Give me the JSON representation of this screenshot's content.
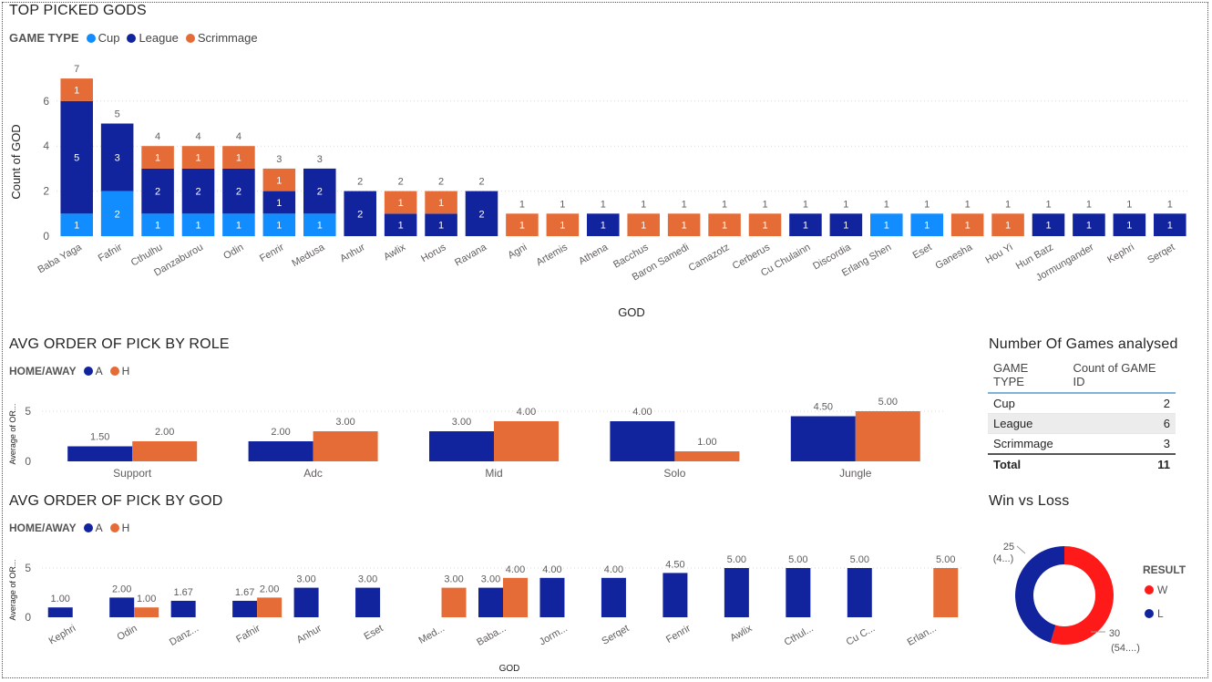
{
  "top_chart": {
    "title": "TOP PICKED GODS",
    "legend_title": "GAME TYPE",
    "legend": [
      {
        "label": "Cup",
        "color": "#118DFF"
      },
      {
        "label": "League",
        "color": "#12239E"
      },
      {
        "label": "Scrimmage",
        "color": "#E66C37"
      }
    ]
  },
  "role_chart": {
    "title": "AVG ORDER OF PICK BY ROLE",
    "legend_title": "HOME/AWAY",
    "legend": [
      {
        "label": "A",
        "color": "#12239E"
      },
      {
        "label": "H",
        "color": "#E66C37"
      }
    ]
  },
  "god_chart": {
    "title": "AVG ORDER OF PICK BY GOD",
    "legend_title": "HOME/AWAY",
    "legend": [
      {
        "label": "A",
        "color": "#12239E"
      },
      {
        "label": "H",
        "color": "#E66C37"
      }
    ]
  },
  "games_table": {
    "title": "Number Of Games analysed",
    "headers": [
      "GAME TYPE",
      "Count of GAME ID"
    ],
    "rows": [
      {
        "type": "Cup",
        "count": "2"
      },
      {
        "type": "League",
        "count": "6"
      },
      {
        "type": "Scrimmage",
        "count": "3"
      }
    ],
    "total_label": "Total",
    "total_value": "11"
  },
  "winloss": {
    "title": "Win vs Loss",
    "legend_title": "RESULT",
    "legend": [
      {
        "label": "W",
        "color": "#FF1A1A"
      },
      {
        "label": "L",
        "color": "#12239E"
      }
    ],
    "label_l_count": "25",
    "label_l_pct": "(4...)",
    "label_w_count": "30",
    "label_w_pct": "(54....)"
  },
  "chart_data": [
    {
      "type": "bar",
      "stacked": true,
      "title": "TOP PICKED GODS",
      "xlabel": "GOD",
      "ylabel": "Count of GOD",
      "ylim": [
        0,
        7
      ],
      "yticks": [
        0,
        2,
        4,
        6
      ],
      "categories": [
        "Baba Yaga",
        "Fafnir",
        "Cthulhu",
        "Danzaburou",
        "Odin",
        "Fenrir",
        "Medusa",
        "Anhur",
        "Awlix",
        "Horus",
        "Ravana",
        "Agni",
        "Artemis",
        "Athena",
        "Bacchus",
        "Baron Samedi",
        "Camazotz",
        "Cerberus",
        "Cu Chulainn",
        "Discordia",
        "Erlang Shen",
        "Eset",
        "Ganesha",
        "Hou Yi",
        "Hun Batz",
        "Jormungander",
        "Kephri",
        "Serqet"
      ],
      "series": [
        {
          "name": "Cup",
          "color": "#118DFF",
          "values": [
            1,
            2,
            1,
            1,
            1,
            1,
            1,
            0,
            0,
            0,
            0,
            0,
            0,
            0,
            0,
            0,
            0,
            0,
            0,
            0,
            1,
            1,
            0,
            0,
            0,
            0,
            0,
            0
          ]
        },
        {
          "name": "League",
          "color": "#12239E",
          "values": [
            5,
            3,
            2,
            2,
            2,
            1,
            2,
            2,
            1,
            1,
            2,
            0,
            0,
            1,
            0,
            0,
            0,
            0,
            1,
            1,
            0,
            0,
            0,
            0,
            1,
            1,
            1,
            1
          ]
        },
        {
          "name": "Scrimmage",
          "color": "#E66C37",
          "values": [
            1,
            0,
            1,
            1,
            1,
            1,
            0,
            0,
            1,
            1,
            0,
            1,
            1,
            0,
            1,
            1,
            1,
            1,
            0,
            0,
            0,
            0,
            1,
            1,
            0,
            0,
            0,
            0
          ]
        }
      ],
      "totals": [
        7,
        5,
        4,
        4,
        4,
        3,
        3,
        2,
        2,
        2,
        2,
        1,
        1,
        1,
        1,
        1,
        1,
        1,
        1,
        1,
        1,
        1,
        1,
        1,
        1,
        1,
        1,
        1
      ]
    },
    {
      "type": "bar",
      "title": "AVG ORDER OF PICK BY ROLE",
      "xlabel": "",
      "ylabel": "Average of OR...",
      "ylim": [
        0,
        5
      ],
      "yticks": [
        0,
        5
      ],
      "categories": [
        "Support",
        "Adc",
        "Mid",
        "Solo",
        "Jungle"
      ],
      "series": [
        {
          "name": "A",
          "color": "#12239E",
          "values": [
            1.5,
            2.0,
            3.0,
            4.0,
            4.5
          ]
        },
        {
          "name": "H",
          "color": "#E66C37",
          "values": [
            2.0,
            3.0,
            4.0,
            1.0,
            5.0
          ]
        }
      ],
      "labels_a": [
        "1.50",
        "2.00",
        "3.00",
        "4.00",
        "4.50"
      ],
      "labels_h": [
        "2.00",
        "3.00",
        "4.00",
        "1.00",
        "5.00"
      ]
    },
    {
      "type": "bar",
      "title": "AVG ORDER OF PICK BY GOD",
      "xlabel": "GOD",
      "ylabel": "Average of OR...",
      "ylim": [
        0,
        5
      ],
      "yticks": [
        0,
        5
      ],
      "categories": [
        "Kephri",
        "Odin",
        "Danz...",
        "Fafnir",
        "Anhur",
        "Eset",
        "Med...",
        "Baba...",
        "Jorm...",
        "Serqet",
        "Fenrir",
        "Awlix",
        "Cthul...",
        "Cu C...",
        "Erlan..."
      ],
      "series": [
        {
          "name": "A",
          "color": "#12239E",
          "values": [
            1.0,
            2.0,
            1.67,
            1.67,
            3.0,
            3.0,
            null,
            3.0,
            4.0,
            4.0,
            4.5,
            5.0,
            5.0,
            5.0,
            null
          ]
        },
        {
          "name": "H",
          "color": "#E66C37",
          "values": [
            null,
            1.0,
            null,
            2.0,
            null,
            null,
            3.0,
            4.0,
            null,
            null,
            null,
            null,
            null,
            null,
            5.0
          ]
        }
      ],
      "labels_a": [
        "1.00",
        "2.00",
        "1.67",
        "1.67",
        "3.00",
        "3.00",
        "",
        "3.00",
        "4.00",
        "4.00",
        "4.50",
        "5.00",
        "5.00",
        "5.00",
        ""
      ],
      "labels_h": [
        "",
        "1.00",
        "",
        "2.00",
        "",
        "",
        "3.00",
        "4.00",
        "",
        "",
        "",
        "",
        "",
        "",
        "5.00"
      ]
    },
    {
      "type": "pie",
      "donut": true,
      "title": "Win vs Loss",
      "categories": [
        "W",
        "L"
      ],
      "values": [
        30,
        25
      ]
    }
  ]
}
